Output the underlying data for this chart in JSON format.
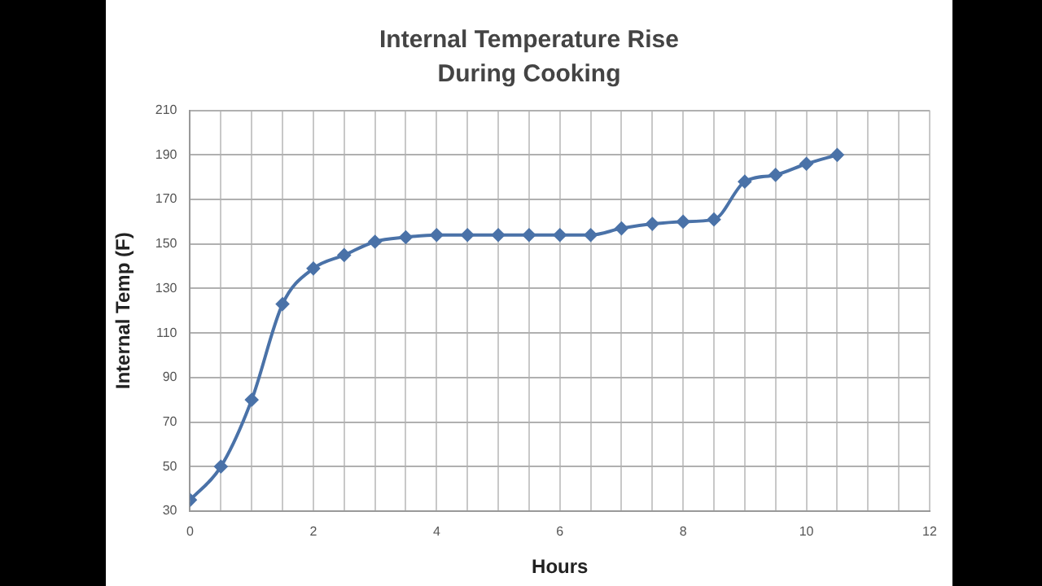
{
  "chart_data": {
    "type": "line",
    "title": "Internal Temperature Rise During Cooking",
    "xlabel": "Hours",
    "ylabel": "Internal Temp (F)",
    "x": [
      0,
      0.5,
      1,
      1.5,
      2,
      2.5,
      3,
      3.5,
      4,
      4.5,
      5,
      5.5,
      6,
      6.5,
      7,
      7.5,
      8,
      8.5,
      9,
      9.5,
      10,
      10.5
    ],
    "series": [
      {
        "color": "#4a72a8",
        "values": [
          35,
          50,
          80,
          123,
          139,
          145,
          151,
          153,
          154,
          154,
          154,
          154,
          154,
          154,
          157,
          159,
          160,
          161,
          178,
          181,
          186,
          190
        ]
      }
    ],
    "xlim": [
      0,
      12
    ],
    "xticks": [
      0,
      {
        "value": 0.5,
        "label": null
      },
      2,
      {
        "value": 1,
        "label": null
      },
      {
        "value": 1.5,
        "label": null
      },
      {
        "value": 2.5,
        "label": null
      },
      {
        "value": 3,
        "label": null
      },
      {
        "value": 3.5,
        "label": null
      },
      4,
      {
        "value": 4.5,
        "label": null
      },
      {
        "value": 5,
        "label": null
      },
      {
        "value": 5.5,
        "label": null
      },
      6,
      {
        "value": 6.5,
        "label": null
      },
      {
        "value": 7,
        "label": null
      },
      {
        "value": 7.5,
        "label": null
      },
      8,
      {
        "value": 8.5,
        "label": null
      },
      {
        "value": 9,
        "label": null
      },
      {
        "value": 9.5,
        "label": null
      },
      10,
      {
        "value": 10.5,
        "label": null
      },
      {
        "value": 11,
        "label": null
      },
      {
        "value": 11.5,
        "label": null
      },
      12
    ],
    "ylim": [
      30,
      210
    ],
    "yticks": [
      30,
      50,
      70,
      90,
      110,
      130,
      150,
      170,
      190,
      210
    ],
    "grid": true,
    "legend": false,
    "marker": "diamond",
    "line_style": "solid"
  }
}
